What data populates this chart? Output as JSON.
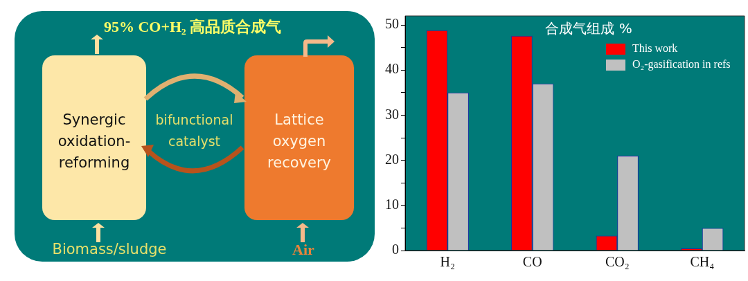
{
  "chart_data": [
    {
      "type": "other",
      "annotations": [
        "95% CO+H₂ 高品质合成气",
        "Synergic oxidation-reforming",
        "bifunctional catalyst",
        "Lattice oxygen recovery",
        "Biomass/sludge",
        "Air"
      ]
    },
    {
      "type": "bar",
      "title": "合成气组成 %",
      "categories": [
        "H₂",
        "CO",
        "CO₂",
        "CH₄"
      ],
      "series": [
        {
          "name": "This work",
          "color": "#ff0000",
          "values": [
            48.8,
            47.6,
            3.3,
            0.2
          ]
        },
        {
          "name": "O₂-gasification in refs",
          "color": "#c0c0c0",
          "values": [
            35,
            37,
            21,
            5
          ]
        }
      ],
      "ylim": [
        0,
        52
      ],
      "yticks": [
        0,
        {
          "value": 5,
          "label": null
        },
        10,
        {
          "value": 15,
          "label": null
        },
        20,
        {
          "value": 25,
          "label": null
        },
        30,
        {
          "value": 35,
          "label": null
        },
        40,
        {
          "value": 45,
          "label": null
        },
        50
      ],
      "grid": false,
      "legend": "top right"
    }
  ]
}
